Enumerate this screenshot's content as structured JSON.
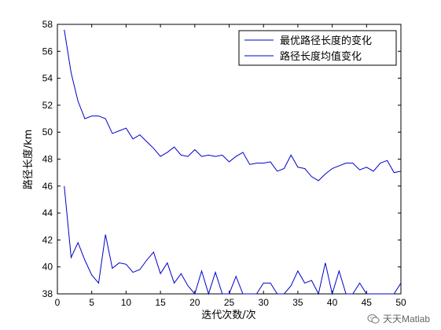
{
  "chart_data": {
    "type": "line",
    "xlabel": "迭代次数/次",
    "ylabel": "路径长度/km",
    "xlim": [
      0,
      50
    ],
    "ylim": [
      38,
      58
    ],
    "xticks": [
      0,
      5,
      10,
      15,
      20,
      25,
      30,
      35,
      40,
      45,
      50
    ],
    "yticks": [
      38,
      40,
      42,
      44,
      46,
      48,
      50,
      52,
      54,
      56,
      58
    ],
    "legend_position": "top-right",
    "grid": false,
    "x": [
      1,
      2,
      3,
      4,
      5,
      6,
      7,
      8,
      9,
      10,
      11,
      12,
      13,
      14,
      15,
      16,
      17,
      18,
      19,
      20,
      21,
      22,
      23,
      24,
      25,
      26,
      27,
      28,
      29,
      30,
      31,
      32,
      33,
      34,
      35,
      36,
      37,
      38,
      39,
      40,
      41,
      42,
      43,
      44,
      45,
      46,
      47,
      48,
      49,
      50
    ],
    "series": [
      {
        "name": "最优路径长度的变化",
        "color": "#0000cc",
        "values": [
          46.0,
          40.7,
          41.8,
          40.5,
          39.4,
          38.8,
          42.4,
          39.9,
          40.3,
          40.2,
          39.6,
          39.8,
          40.5,
          41.1,
          39.5,
          40.3,
          38.8,
          39.5,
          38.6,
          38.0,
          39.7,
          38.0,
          39.6,
          38.0,
          38.0,
          39.3,
          38.0,
          38.0,
          38.0,
          38.8,
          38.8,
          38.0,
          38.0,
          38.6,
          39.7,
          38.8,
          39.0,
          38.0,
          40.3,
          38.0,
          39.7,
          38.0,
          38.0,
          38.8,
          38.0,
          38.0,
          38.0,
          38.0,
          38.0,
          38.8
        ]
      },
      {
        "name": "路径长度均值变化",
        "color": "#0000cc",
        "values": [
          57.6,
          54.4,
          52.3,
          51.0,
          51.2,
          51.2,
          51.0,
          49.9,
          50.1,
          50.3,
          49.5,
          49.8,
          49.3,
          48.8,
          48.2,
          48.5,
          48.9,
          48.3,
          48.2,
          48.7,
          48.2,
          48.3,
          48.2,
          48.3,
          47.8,
          48.2,
          48.5,
          47.6,
          47.7,
          47.7,
          47.8,
          47.1,
          47.3,
          48.3,
          47.4,
          47.3,
          46.7,
          46.4,
          46.9,
          47.3,
          47.5,
          47.7,
          47.7,
          47.2,
          47.4,
          47.1,
          47.7,
          47.9,
          47.0,
          47.1
        ]
      }
    ]
  },
  "watermark": {
    "text": "天天Matlab",
    "icon": "wechat-icon"
  }
}
